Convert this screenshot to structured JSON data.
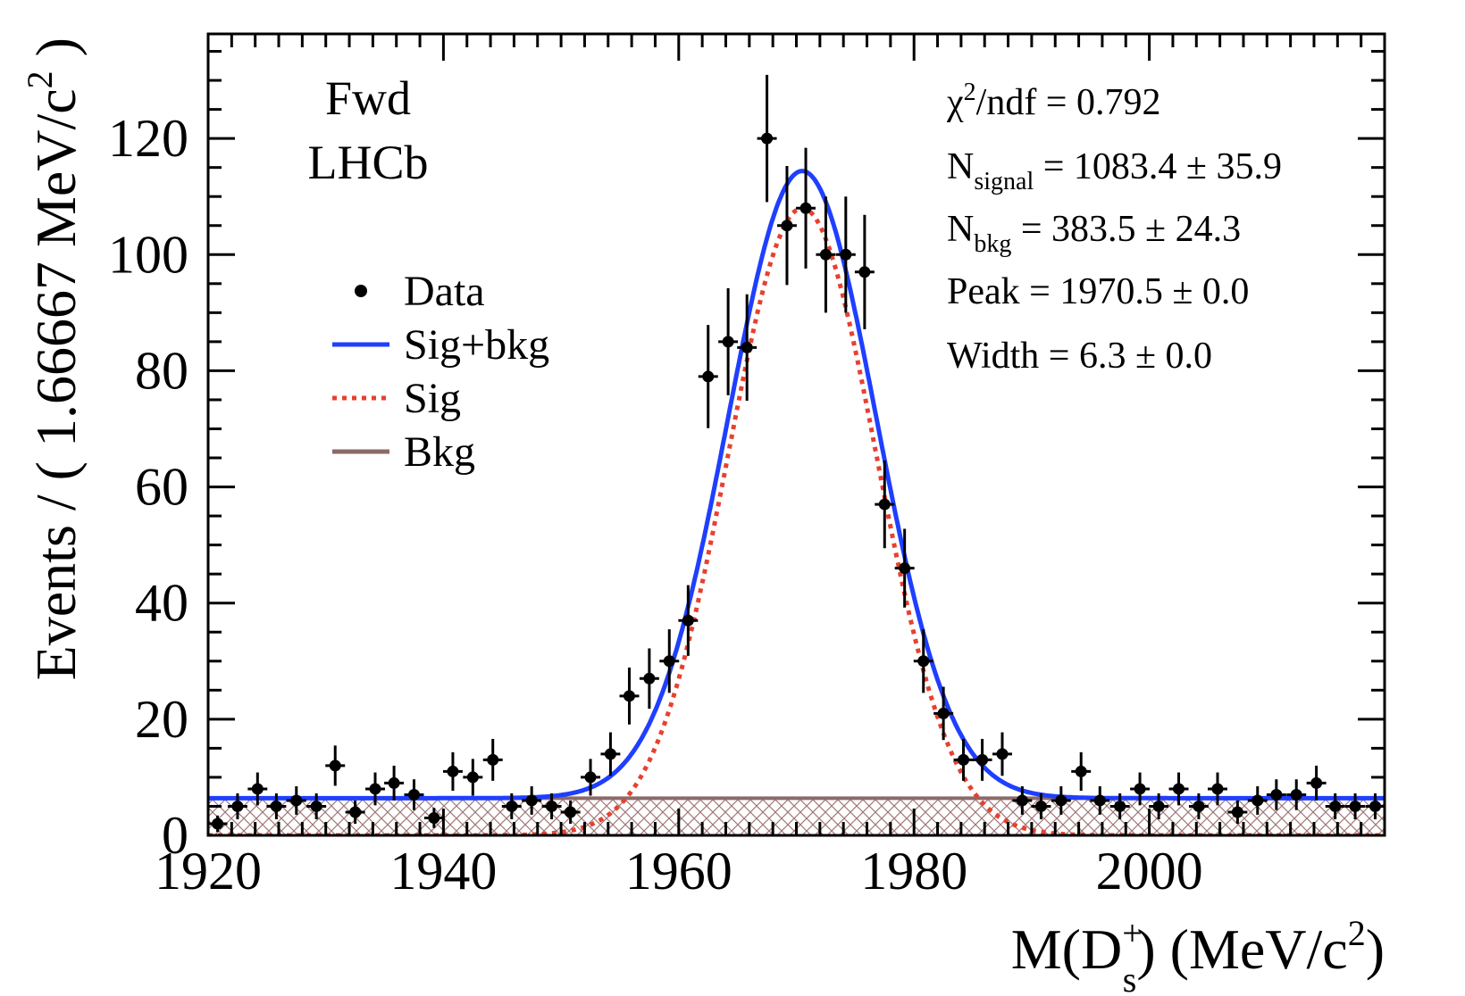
{
  "chart_data": {
    "type": "scatter",
    "title": "",
    "xlabel": {
      "main": "M(D",
      "sub": "s",
      "sup": "+",
      "tail": ") (MeV/c",
      "tail_sup": "2",
      "end": ")"
    },
    "ylabel": {
      "main": "Events / ( 1.66667 MeV/c",
      "sup": "2",
      "end": " )"
    },
    "xlim": [
      1920,
      2020
    ],
    "ylim": [
      0,
      138
    ],
    "x_ticks": [
      1920,
      1940,
      1960,
      1980,
      2000
    ],
    "y_ticks": [
      0,
      20,
      40,
      60,
      80,
      100,
      120
    ],
    "bin_width": 1.66667,
    "labels": {
      "line1": "Fwd",
      "line2": "LHCb"
    },
    "legend": {
      "position": "upper-left",
      "entries": [
        {
          "label": "Data",
          "style": "marker"
        },
        {
          "label": "Sig+bkg",
          "style": "solid",
          "color": "#1f3fff"
        },
        {
          "label": "Sig",
          "style": "dotted",
          "color": "#e8402f"
        },
        {
          "label": "Bkg",
          "style": "solid",
          "color": "#8b6a6a"
        }
      ]
    },
    "fit_results": {
      "chi2": {
        "base": "χ",
        "sup": "2",
        "rest": "/ndf = 0.792"
      },
      "nsignal": {
        "base": "N",
        "sub": "signal",
        "rest": " = 1083.4 ± 35.9"
      },
      "nbkg": {
        "base": "N",
        "sub": "bkg",
        "rest": " = 383.5 ± 24.3"
      },
      "peak": "Peak = 1970.5 ± 0.0",
      "width": "Width = 6.3 ± 0.0"
    },
    "model": {
      "background_level": 6.4,
      "signal_mean": 1970.5,
      "signal_sigma": 6.3,
      "signal_amplitude": 108
    },
    "colors": {
      "sigbkg": "#1f3fff",
      "sig": "#e8402f",
      "bkg": "#8b6a6a",
      "bkg_hatch": "#a07878",
      "data": "#000000"
    },
    "series": [
      {
        "name": "Data",
        "x": [
          1920.8,
          1922.5,
          1924.2,
          1925.8,
          1927.5,
          1929.2,
          1930.8,
          1932.5,
          1934.2,
          1935.8,
          1937.5,
          1939.2,
          1940.8,
          1942.5,
          1944.2,
          1945.8,
          1947.5,
          1949.2,
          1950.8,
          1952.5,
          1954.2,
          1955.8,
          1957.5,
          1959.2,
          1960.8,
          1962.5,
          1964.2,
          1965.8,
          1967.5,
          1969.2,
          1970.8,
          1972.5,
          1974.2,
          1975.8,
          1977.5,
          1979.2,
          1980.8,
          1982.5,
          1984.2,
          1985.8,
          1987.5,
          1989.2,
          1990.8,
          1992.5,
          1994.2,
          1995.8,
          1997.5,
          1999.2,
          2000.8,
          2002.5,
          2004.2,
          2005.8,
          2007.5,
          2009.2,
          2010.8,
          2012.5,
          2014.2,
          2015.8,
          2017.5,
          2019.2
        ],
        "y": [
          2,
          5,
          8,
          5,
          6,
          5,
          12,
          4,
          8,
          9,
          7,
          3,
          11,
          10,
          13,
          5,
          6,
          5,
          4,
          10,
          14,
          24,
          27,
          30,
          37,
          79,
          85,
          84,
          120,
          105,
          108,
          100,
          100,
          97,
          57,
          46,
          30,
          21,
          13,
          13,
          14,
          6,
          5,
          6,
          11,
          6,
          5,
          8,
          5,
          8,
          5,
          8,
          4,
          6,
          7,
          7,
          9,
          5,
          5,
          5
        ]
      }
    ]
  }
}
